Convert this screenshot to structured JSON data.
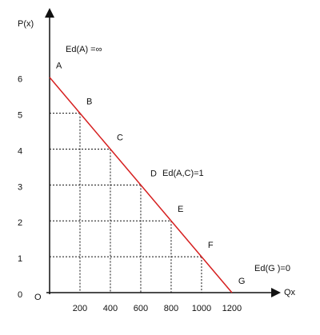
{
  "chart_data": {
    "type": "line",
    "y_label": "P(x)",
    "x_label": "Qx",
    "origin_label": "O",
    "x": [
      0,
      200,
      400,
      600,
      800,
      1000,
      1200
    ],
    "series": [
      {
        "color": "#d62020",
        "values": [
          6,
          5,
          4,
          3,
          2,
          1,
          0
        ]
      }
    ],
    "point_labels": [
      "A",
      "B",
      "C",
      "D",
      "E",
      "F",
      "G"
    ],
    "annotations": [
      "Ed(A) =∞",
      "Ed(A,C)=1",
      "Ed(G )=0"
    ],
    "xlim": [
      0,
      1490
    ],
    "ylim": [
      0,
      7.8
    ],
    "xticks": [
      200,
      400,
      600,
      800,
      1000,
      1200
    ],
    "yticks": [
      0,
      1,
      2,
      3,
      4,
      5,
      6
    ]
  }
}
